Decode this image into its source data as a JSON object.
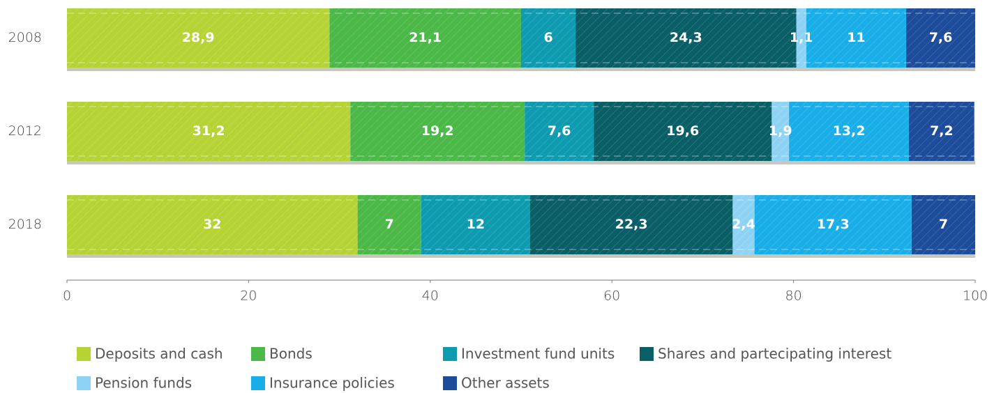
{
  "chart_data": {
    "type": "stacked_barh",
    "categories": [
      "2008",
      "2012",
      "2018"
    ],
    "series": [
      {
        "name": "Deposits and cash",
        "color": "#b5d334",
        "values": [
          28.9,
          31.2,
          32
        ],
        "value_labels": [
          "28,9",
          "31,2",
          "32"
        ]
      },
      {
        "name": "Bonds",
        "color": "#4cb848",
        "values": [
          21.1,
          19.2,
          7
        ],
        "value_labels": [
          "21,1",
          "19,2",
          "7"
        ]
      },
      {
        "name": "Investment fund units",
        "color": "#0e9bb0",
        "values": [
          6,
          7.6,
          12
        ],
        "value_labels": [
          "6",
          "7,6",
          "12"
        ]
      },
      {
        "name": "Shares and partecipating interest",
        "color": "#0a5e66",
        "values": [
          24.3,
          19.6,
          22.3
        ],
        "value_labels": [
          "24,3",
          "19,6",
          "22,3"
        ]
      },
      {
        "name": "Pension funds",
        "color": "#8fd3f4",
        "values": [
          1.1,
          1.9,
          2.4
        ],
        "value_labels": [
          "1,1",
          "1,9",
          "2,4"
        ]
      },
      {
        "name": "Insurance policies",
        "color": "#1aaee8",
        "values": [
          11,
          13.2,
          17.3
        ],
        "value_labels": [
          "11",
          "13,2",
          "17,3"
        ]
      },
      {
        "name": "Other assets",
        "color": "#1d4c9a",
        "values": [
          7.6,
          7.2,
          7
        ],
        "value_labels": [
          "7,6",
          "7,2",
          "7"
        ]
      }
    ],
    "xlim": [
      0,
      100
    ],
    "xticks": [
      0,
      20,
      40,
      60,
      80,
      100
    ]
  }
}
